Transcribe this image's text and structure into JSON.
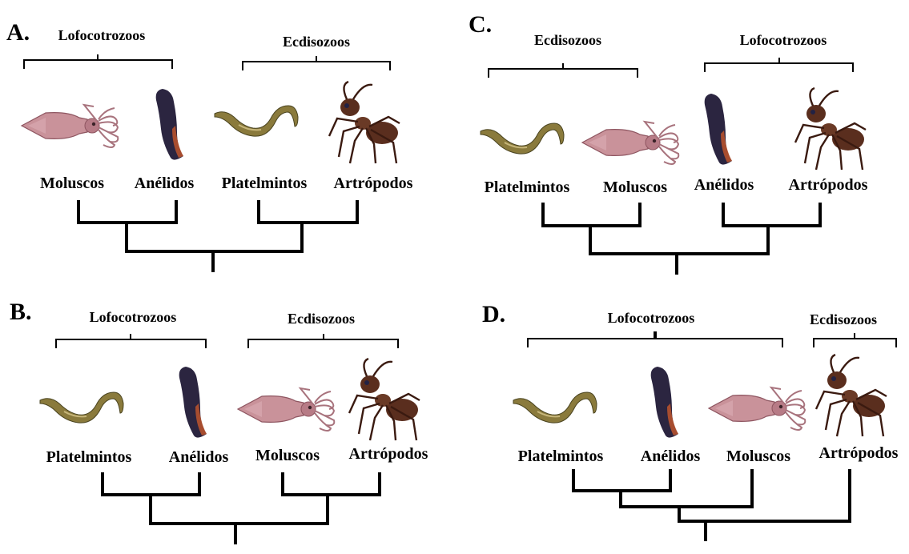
{
  "panels": [
    {
      "letter": "A.",
      "clades": [
        "Lofocotrozoos",
        "Ecdisozoos"
      ],
      "taxa": [
        {
          "name": "Moluscos",
          "icon": "squid"
        },
        {
          "name": "Anélidos",
          "icon": "leech"
        },
        {
          "name": "Platelmintos",
          "icon": "flatworm"
        },
        {
          "name": "Artrópodos",
          "icon": "ant"
        }
      ],
      "topology": "((Moluscos,Anélidos),(Platelmintos,Artrópodos))"
    },
    {
      "letter": "C.",
      "clades": [
        "Ecdisozoos",
        "Lofocotrozoos"
      ],
      "taxa": [
        {
          "name": "Platelmintos",
          "icon": "flatworm"
        },
        {
          "name": "Moluscos",
          "icon": "squid"
        },
        {
          "name": "Anélidos",
          "icon": "leech"
        },
        {
          "name": "Artrópodos",
          "icon": "ant"
        }
      ],
      "topology": "((Platelmintos,Moluscos),(Anélidos,Artrópodos))"
    },
    {
      "letter": "B.",
      "clades": [
        "Lofocotrozoos",
        "Ecdisozoos"
      ],
      "taxa": [
        {
          "name": "Platelmintos",
          "icon": "flatworm"
        },
        {
          "name": "Anélidos",
          "icon": "leech"
        },
        {
          "name": "Moluscos",
          "icon": "squid"
        },
        {
          "name": "Artrópodos",
          "icon": "ant"
        }
      ],
      "topology": "((Platelmintos,Anélidos),(Moluscos,Artrópodos))"
    },
    {
      "letter": "D.",
      "clades": [
        "Lofocotrozoos",
        "Ecdisozoos"
      ],
      "taxa": [
        {
          "name": "Platelmintos",
          "icon": "flatworm"
        },
        {
          "name": "Anélidos",
          "icon": "leech"
        },
        {
          "name": "Moluscos",
          "icon": "squid"
        },
        {
          "name": "Artrópodos",
          "icon": "ant"
        }
      ],
      "topology": "(((Platelmintos,Anélidos),Moluscos),Artrópodos)"
    }
  ],
  "colors": {
    "line": "#000000",
    "squid": "#c9929a",
    "squid_dark": "#8e5560",
    "leech": "#2b2540",
    "leech_edge": "#b5522e",
    "flatworm": "#8a7a3c",
    "flatworm_dark": "#4a4420",
    "ant": "#5a2e1e",
    "ant_light": "#8a5a44"
  }
}
